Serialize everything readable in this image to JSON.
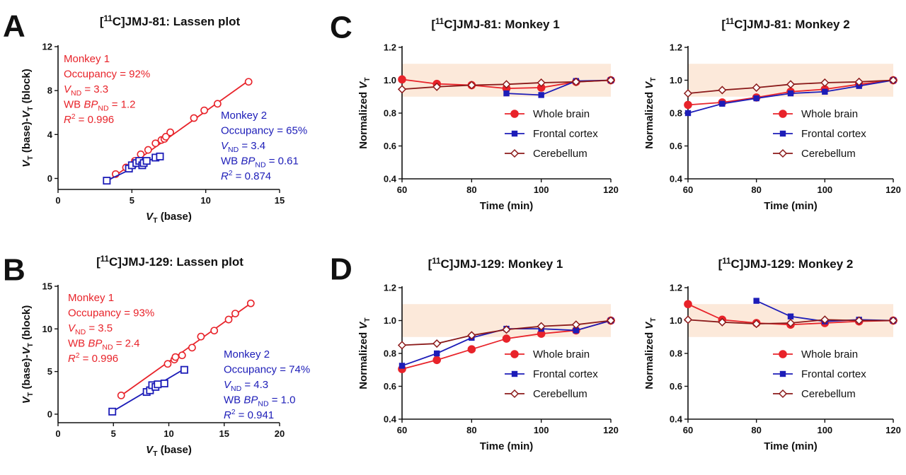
{
  "colors": {
    "red": "#e8232a",
    "blue": "#1d1db8",
    "darkred": "#8b1a1a",
    "band": "#fce9da",
    "fit_red": "#e8232a",
    "fit_blue": "#1d1db8"
  },
  "panel_labels": [
    "A",
    "B",
    "C",
    "D"
  ],
  "chart_data": [
    {
      "id": "A",
      "type": "scatter",
      "title": "[11C]JMJ-81: Lassen plot",
      "xlabel": "VT (base)",
      "ylabel": "VT (base)-VT (block)",
      "xlim": [
        0,
        15
      ],
      "ylim": [
        -1,
        12
      ],
      "xticks": [
        0,
        5,
        10,
        15
      ],
      "yticks": [
        0,
        4,
        8,
        12
      ],
      "series": [
        {
          "name": "Monkey 1",
          "color": "red",
          "marker": "circle",
          "x": [
            3.9,
            4.6,
            5.2,
            5.6,
            6.1,
            6.6,
            7.0,
            7.2,
            7.3,
            7.6,
            9.2,
            9.9,
            10.8,
            12.9
          ],
          "y": [
            0.4,
            1.0,
            1.6,
            2.2,
            2.6,
            3.2,
            3.5,
            3.6,
            3.8,
            4.2,
            5.5,
            6.2,
            6.8,
            8.8
          ],
          "fit": [
            [
              3.3,
              -0.3
            ],
            [
              12.9,
              8.9
            ]
          ]
        },
        {
          "name": "Monkey 2",
          "color": "blue",
          "marker": "square",
          "x": [
            3.3,
            4.8,
            5.0,
            5.3,
            5.5,
            5.7,
            5.8,
            6.0,
            6.6,
            6.9
          ],
          "y": [
            -0.2,
            0.9,
            1.2,
            1.4,
            1.6,
            1.2,
            1.4,
            1.6,
            1.9,
            2.0
          ],
          "fit": [
            [
              3.3,
              -0.2
            ],
            [
              6.9,
              2.1
            ]
          ]
        }
      ],
      "annotations": [
        {
          "color": "red",
          "lines": [
            "Monkey 1",
            "Occupancy = 92%",
            "VND = 3.3",
            "WB BPND = 1.2",
            "R2 = 0.996"
          ]
        },
        {
          "color": "blue",
          "lines": [
            "Monkey 2",
            "Occupancy = 65%",
            "VND = 3.4",
            "WB BPND = 0.61",
            "R2 = 0.874"
          ]
        }
      ]
    },
    {
      "id": "B",
      "type": "scatter",
      "title": "[11C]JMJ-129: Lassen plot",
      "xlabel": "VT (base)",
      "ylabel": "VT (base)-VT (block)",
      "xlim": [
        0,
        20
      ],
      "ylim": [
        -1,
        15
      ],
      "xticks": [
        0,
        5,
        10,
        15,
        20
      ],
      "yticks": [
        0,
        5,
        10,
        15
      ],
      "series": [
        {
          "name": "Monkey 1",
          "color": "red",
          "marker": "circle",
          "x": [
            5.7,
            9.9,
            10.5,
            10.6,
            11.2,
            12.1,
            12.9,
            14.1,
            15.4,
            16.0,
            17.4
          ],
          "y": [
            2.2,
            5.9,
            6.4,
            6.7,
            6.9,
            7.8,
            9.1,
            9.8,
            11.1,
            11.8,
            13.0
          ],
          "fit": [
            [
              5.6,
              2.1
            ],
            [
              17.4,
              13.0
            ]
          ]
        },
        {
          "name": "Monkey 2",
          "color": "blue",
          "marker": "square",
          "x": [
            4.9,
            8.0,
            8.3,
            8.5,
            8.8,
            9.0,
            9.6,
            11.4
          ],
          "y": [
            0.3,
            2.6,
            2.8,
            3.4,
            3.2,
            3.5,
            3.6,
            5.2
          ],
          "fit": [
            [
              4.9,
              0.3
            ],
            [
              11.4,
              5.3
            ]
          ]
        }
      ],
      "annotations": [
        {
          "color": "red",
          "lines": [
            "Monkey 1",
            "Occupancy = 93%",
            "VND = 3.5",
            "WB BPND = 2.4",
            "R2 = 0.996"
          ]
        },
        {
          "color": "blue",
          "lines": [
            "Monkey 2",
            "Occupancy = 74%",
            "VND = 4.3",
            "WB BPND = 1.0",
            "R2 = 0.941"
          ]
        }
      ]
    },
    {
      "id": "C1",
      "type": "line",
      "title": "[11C]JMJ-81: Monkey 1",
      "xlabel": "Time (min)",
      "ylabel": "Normalized VT",
      "xlim": [
        60,
        120
      ],
      "ylim": [
        0.4,
        1.2
      ],
      "band": [
        0.9,
        1.1
      ],
      "xticks": [
        60,
        80,
        100,
        120
      ],
      "yticks": [
        0.4,
        0.6,
        0.8,
        1.0,
        1.2
      ],
      "series": [
        {
          "name": "Whole brain",
          "color": "red",
          "marker": "circle",
          "x": [
            60,
            70,
            80,
            90,
            100,
            110,
            120
          ],
          "y": [
            1.005,
            0.978,
            0.97,
            0.95,
            0.955,
            0.99,
            1.0
          ]
        },
        {
          "name": "Frontal cortex",
          "color": "blue",
          "marker": "square",
          "x": [
            90,
            100,
            110,
            120
          ],
          "y": [
            0.92,
            0.91,
            0.995,
            1.0
          ]
        },
        {
          "name": "Cerebellum",
          "color": "darkred",
          "marker": "diamond",
          "x": [
            60,
            70,
            80,
            90,
            100,
            110,
            120
          ],
          "y": [
            0.945,
            0.96,
            0.97,
            0.975,
            0.985,
            0.99,
            1.0
          ]
        }
      ]
    },
    {
      "id": "C2",
      "type": "line",
      "title": "[11C]JMJ-81: Monkey 2",
      "xlabel": "Time (min)",
      "ylabel": "Normalized VT",
      "xlim": [
        60,
        120
      ],
      "ylim": [
        0.4,
        1.2
      ],
      "band": [
        0.9,
        1.1
      ],
      "xticks": [
        60,
        80,
        100,
        120
      ],
      "yticks": [
        0.4,
        0.6,
        0.8,
        1.0,
        1.2
      ],
      "series": [
        {
          "name": "Whole brain",
          "color": "red",
          "marker": "circle",
          "x": [
            60,
            70,
            80,
            90,
            100,
            110,
            120
          ],
          "y": [
            0.85,
            0.865,
            0.895,
            0.93,
            0.945,
            0.975,
            1.0
          ]
        },
        {
          "name": "Frontal cortex",
          "color": "blue",
          "marker": "square",
          "x": [
            60,
            70,
            80,
            90,
            100,
            110,
            120
          ],
          "y": [
            0.8,
            0.857,
            0.89,
            0.92,
            0.93,
            0.965,
            1.0
          ]
        },
        {
          "name": "Cerebellum",
          "color": "darkred",
          "marker": "diamond",
          "x": [
            60,
            70,
            80,
            90,
            100,
            110,
            120
          ],
          "y": [
            0.92,
            0.94,
            0.955,
            0.975,
            0.985,
            0.99,
            1.0
          ]
        }
      ]
    },
    {
      "id": "D1",
      "type": "line",
      "title": "[11C]JMJ-129: Monkey 1",
      "xlabel": "Time (min)",
      "ylabel": "Normalized VT",
      "xlim": [
        60,
        120
      ],
      "ylim": [
        0.4,
        1.2
      ],
      "band": [
        0.9,
        1.1
      ],
      "xticks": [
        60,
        80,
        100,
        120
      ],
      "yticks": [
        0.4,
        0.6,
        0.8,
        1.0,
        1.2
      ],
      "series": [
        {
          "name": "Whole brain",
          "color": "red",
          "marker": "circle",
          "x": [
            60,
            70,
            80,
            90,
            100,
            110,
            120
          ],
          "y": [
            0.705,
            0.76,
            0.825,
            0.89,
            0.92,
            0.94,
            1.0
          ]
        },
        {
          "name": "Frontal cortex",
          "color": "blue",
          "marker": "square",
          "x": [
            60,
            70,
            80,
            90,
            100,
            110,
            120
          ],
          "y": [
            0.725,
            0.8,
            0.895,
            0.95,
            0.95,
            0.94,
            1.0
          ]
        },
        {
          "name": "Cerebellum",
          "color": "darkred",
          "marker": "diamond",
          "x": [
            60,
            70,
            80,
            90,
            100,
            110,
            120
          ],
          "y": [
            0.85,
            0.86,
            0.91,
            0.945,
            0.965,
            0.975,
            1.0
          ]
        }
      ]
    },
    {
      "id": "D2",
      "type": "line",
      "title": "[11C]JMJ-129: Monkey 2",
      "xlabel": "Time (min)",
      "ylabel": "Normalized VT",
      "xlim": [
        60,
        120
      ],
      "ylim": [
        0.4,
        1.2
      ],
      "band": [
        0.9,
        1.1
      ],
      "xticks": [
        60,
        80,
        100,
        120
      ],
      "yticks": [
        0.4,
        0.6,
        0.8,
        1.0,
        1.2
      ],
      "series": [
        {
          "name": "Whole brain",
          "color": "red",
          "marker": "circle",
          "x": [
            60,
            70,
            80,
            90,
            100,
            110,
            120
          ],
          "y": [
            1.1,
            1.005,
            0.985,
            0.975,
            0.985,
            0.995,
            1.0
          ]
        },
        {
          "name": "Frontal cortex",
          "color": "blue",
          "marker": "square",
          "x": [
            80,
            90,
            100,
            110,
            120
          ],
          "y": [
            1.12,
            1.025,
            0.995,
            1.005,
            1.0
          ]
        },
        {
          "name": "Cerebellum",
          "color": "darkred",
          "marker": "diamond",
          "x": [
            60,
            70,
            80,
            90,
            100,
            110,
            120
          ],
          "y": [
            1.005,
            0.99,
            0.98,
            0.985,
            1.005,
            1.0,
            1.0
          ]
        }
      ]
    }
  ]
}
